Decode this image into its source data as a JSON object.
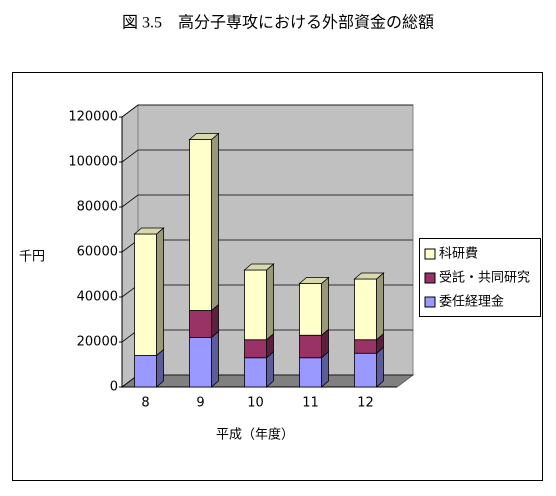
{
  "chart_data": {
    "type": "bar3d",
    "title": "図 3.5　高分子専攻における外部資金の総額",
    "x_label": "平成（年度）",
    "y_label": "千円",
    "categories": [
      "8",
      "9",
      "10",
      "11",
      "12"
    ],
    "series": [
      {
        "name": "委任経理金",
        "color": "#9999ff",
        "values": [
          14000,
          22000,
          13000,
          13000,
          15000
        ]
      },
      {
        "name": "受託・共同研究",
        "color": "#993366",
        "values": [
          0,
          12000,
          8000,
          10000,
          6000
        ]
      },
      {
        "name": "科研費",
        "color": "#ffffcc",
        "values": [
          54000,
          76000,
          31000,
          23000,
          27000
        ]
      }
    ],
    "ylim": [
      0,
      120000
    ],
    "yticks": [
      0,
      20000,
      40000,
      60000,
      80000,
      100000,
      120000
    ],
    "grid": true,
    "stacked": true,
    "legend": "right"
  }
}
